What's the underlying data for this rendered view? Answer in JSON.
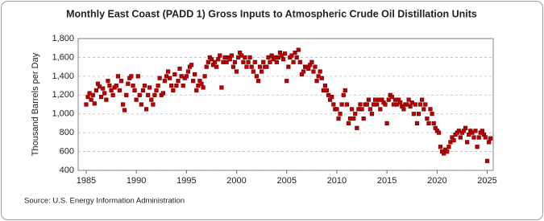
{
  "chart_data": {
    "type": "scatter",
    "title": "Monthly East Coast (PADD 1) Gross Inputs to Atmospheric Crude Oil Distillation Units",
    "y_label": "Thousand Barrels per Day",
    "source": "Source: U.S. Energy Information Administration",
    "color": "#c00000",
    "grid": true,
    "xlim": [
      1984.2,
      2025.6
    ],
    "ylim": [
      400,
      1800
    ],
    "xticks": [
      1985,
      1990,
      1995,
      2000,
      2005,
      2010,
      2015,
      2020,
      2025
    ],
    "yticks": [
      400,
      600,
      800,
      {
        "value": 1000,
        "label": "1,000"
      },
      {
        "value": 1200,
        "label": "1,200"
      },
      {
        "value": 1400,
        "label": "1,400"
      },
      {
        "value": 1600,
        "label": "1,600"
      },
      {
        "value": 1800,
        "label": "1,800"
      }
    ],
    "x": [
      1985,
      1985.17,
      1985.33,
      1985.5,
      1985.67,
      1985.83,
      1986,
      1986.17,
      1986.33,
      1986.5,
      1986.67,
      1986.83,
      1987,
      1987.17,
      1987.33,
      1987.5,
      1987.67,
      1987.83,
      1988,
      1988.17,
      1988.33,
      1988.5,
      1988.67,
      1988.83,
      1989,
      1989.17,
      1989.33,
      1989.5,
      1989.67,
      1989.83,
      1990,
      1990.17,
      1990.33,
      1990.5,
      1990.67,
      1990.83,
      1991,
      1991.17,
      1991.33,
      1991.5,
      1991.67,
      1991.83,
      1992,
      1992.17,
      1992.33,
      1992.5,
      1992.67,
      1992.83,
      1993,
      1993.17,
      1993.33,
      1993.5,
      1993.67,
      1993.83,
      1994,
      1994.17,
      1994.33,
      1994.5,
      1994.67,
      1994.83,
      1995,
      1995.17,
      1995.33,
      1995.5,
      1995.67,
      1995.83,
      1996,
      1996.17,
      1996.33,
      1996.5,
      1996.67,
      1996.83,
      1997,
      1997.17,
      1997.33,
      1997.5,
      1997.67,
      1997.83,
      1998,
      1998.17,
      1998.33,
      1998.5,
      1998.67,
      1998.83,
      1999,
      1999.17,
      1999.33,
      1999.5,
      1999.67,
      1999.83,
      2000,
      2000.17,
      2000.33,
      2000.5,
      2000.67,
      2000.83,
      2001,
      2001.17,
      2001.33,
      2001.5,
      2001.67,
      2001.83,
      2002,
      2002.17,
      2002.33,
      2002.5,
      2002.67,
      2002.83,
      2003,
      2003.17,
      2003.33,
      2003.5,
      2003.67,
      2003.83,
      2004,
      2004.17,
      2004.33,
      2004.5,
      2004.67,
      2004.83,
      2005,
      2005.17,
      2005.33,
      2005.5,
      2005.67,
      2005.83,
      2006,
      2006.17,
      2006.33,
      2006.5,
      2006.67,
      2006.83,
      2007,
      2007.17,
      2007.33,
      2007.5,
      2007.67,
      2007.83,
      2008,
      2008.17,
      2008.33,
      2008.5,
      2008.67,
      2008.83,
      2009,
      2009.17,
      2009.33,
      2009.5,
      2009.67,
      2009.83,
      2010,
      2010.17,
      2010.33,
      2010.5,
      2010.67,
      2010.83,
      2011,
      2011.17,
      2011.33,
      2011.5,
      2011.67,
      2011.83,
      2012,
      2012.17,
      2012.33,
      2012.5,
      2012.67,
      2012.83,
      2013,
      2013.17,
      2013.33,
      2013.5,
      2013.67,
      2013.83,
      2014,
      2014.17,
      2014.33,
      2014.5,
      2014.67,
      2014.83,
      2015,
      2015.17,
      2015.33,
      2015.5,
      2015.67,
      2015.83,
      2016,
      2016.17,
      2016.33,
      2016.5,
      2016.67,
      2016.83,
      2017,
      2017.17,
      2017.33,
      2017.5,
      2017.67,
      2017.83,
      2018,
      2018.17,
      2018.33,
      2018.5,
      2018.67,
      2018.83,
      2019,
      2019.17,
      2019.33,
      2019.5,
      2019.67,
      2019.83,
      2020,
      2020.17,
      2020.33,
      2020.5,
      2020.67,
      2020.83,
      2021,
      2021.17,
      2021.33,
      2021.5,
      2021.67,
      2021.83,
      2022,
      2022.17,
      2022.33,
      2022.5,
      2022.67,
      2022.83,
      2023,
      2023.17,
      2023.33,
      2023.5,
      2023.67,
      2023.83,
      2024,
      2024.17,
      2024.33,
      2024.5,
      2024.67,
      2024.83,
      2025,
      2025.17,
      2025.33
    ],
    "values": [
      1100,
      1180,
      1220,
      1150,
      1200,
      1110,
      1250,
      1320,
      1290,
      1180,
      1270,
      1220,
      1150,
      1350,
      1300,
      1250,
      1200,
      1280,
      1300,
      1400,
      1250,
      1350,
      1100,
      1040,
      1200,
      1320,
      1380,
      1400,
      1300,
      1250,
      1150,
      1400,
      1200,
      1100,
      1250,
      1300,
      1050,
      1200,
      1280,
      1150,
      1100,
      1200,
      1250,
      1300,
      1380,
      1200,
      1220,
      1350,
      1400,
      1450,
      1380,
      1300,
      1250,
      1420,
      1300,
      1350,
      1480,
      1400,
      1300,
      1380,
      1400,
      1450,
      1500,
      1520,
      1350,
      1420,
      1250,
      1300,
      1350,
      1320,
      1280,
      1400,
      1500,
      1550,
      1600,
      1580,
      1520,
      1550,
      1500,
      1580,
      1620,
      1280,
      1550,
      1600,
      1550,
      1600,
      1580,
      1620,
      1500,
      1550,
      1450,
      1600,
      1650,
      1620,
      1550,
      1600,
      1500,
      1550,
      1600,
      1500,
      1450,
      1550,
      1400,
      1350,
      1500,
      1450,
      1550,
      1500,
      1500,
      1600,
      1550,
      1620,
      1580,
      1600,
      1550,
      1600,
      1650,
      1620,
      1580,
      1640,
      1350,
      1500,
      1600,
      1620,
      1550,
      1650,
      1600,
      1680,
      1550,
      1420,
      1450,
      1500,
      1500,
      1480,
      1520,
      1550,
      1450,
      1500,
      1350,
      1400,
      1450,
      1380,
      1250,
      1300,
      1250,
      1200,
      1150,
      1180,
      1100,
      1050,
      1050,
      950,
      1000,
      1100,
      1200,
      1250,
      1100,
      900,
      950,
      1050,
      950,
      1000,
      850,
      1050,
      1100,
      1050,
      950,
      1100,
      1100,
      1150,
      1050,
      1000,
      1100,
      1150,
      1100,
      1150,
      1050,
      1150,
      1120,
      1100,
      900,
      1150,
      1200,
      1180,
      1100,
      1150,
      1100,
      1150,
      1120,
      1080,
      1050,
      1100,
      1100,
      1150,
      1080,
      1120,
      1000,
      1100,
      900,
      1000,
      1100,
      1150,
      1050,
      1100,
      950,
      900,
      1050,
      1000,
      900,
      850,
      820,
      800,
      650,
      600,
      580,
      620,
      600,
      650,
      700,
      750,
      720,
      780,
      800,
      820,
      750,
      800,
      820,
      850,
      700,
      780,
      820,
      800,
      750,
      820,
      650,
      750,
      800,
      820,
      780,
      750,
      500,
      700,
      740
    ]
  }
}
